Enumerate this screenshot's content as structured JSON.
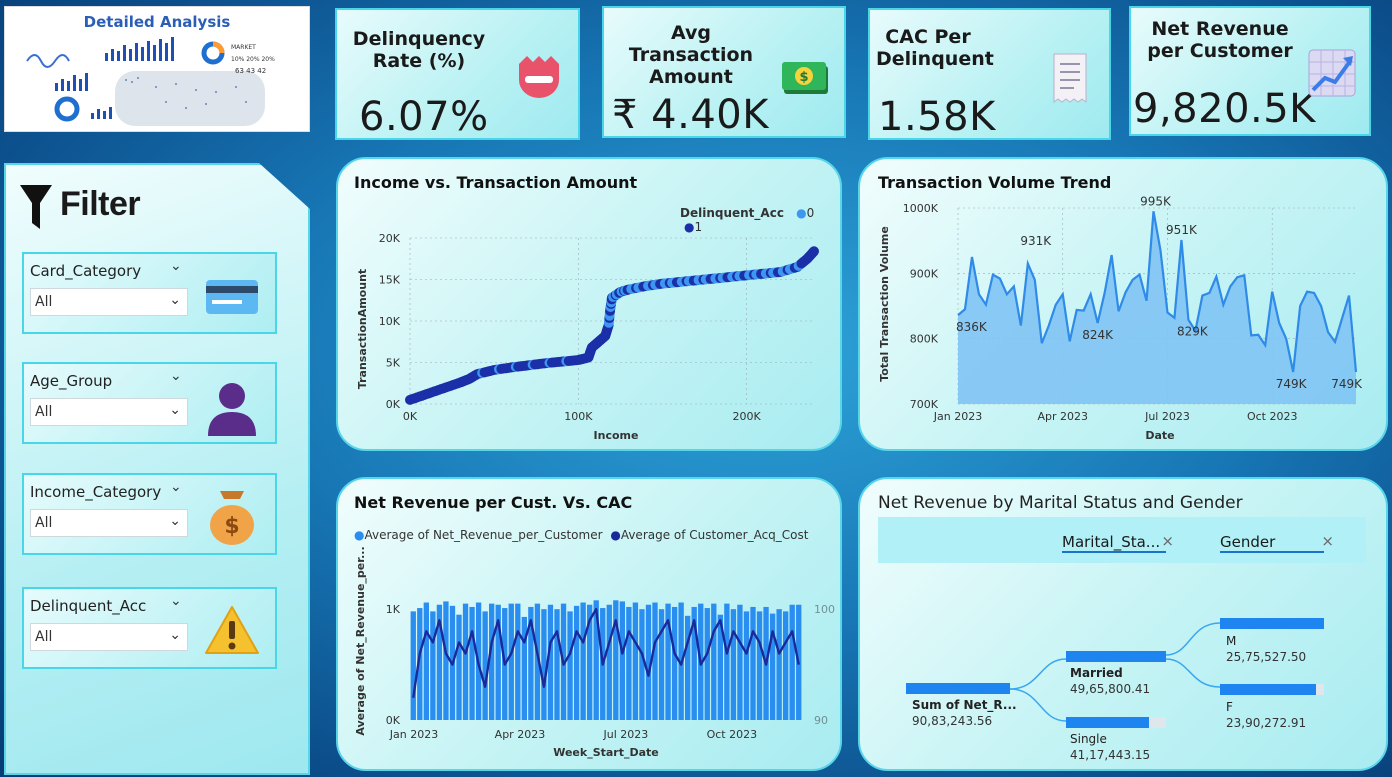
{
  "logo": {
    "title": "Detailed Analysis"
  },
  "kpis": [
    {
      "title": "Delinquency Rate (%)",
      "value": "6.07%",
      "icon": "no-entry-icon"
    },
    {
      "title": "Avg Transaction Amount",
      "value": "₹ 4.40K",
      "icon": "banknote-icon"
    },
    {
      "title": "CAC Per Delinquent",
      "value": "1.58K",
      "icon": "receipt-icon"
    },
    {
      "title": "Net Revenue per Customer",
      "value": "9,820.5K",
      "icon": "trend-chart-icon"
    }
  ],
  "filter": {
    "title": "Filter",
    "slicers": [
      {
        "label": "Card_Category",
        "value": "All",
        "icon": "credit-card-icon"
      },
      {
        "label": "Age_Group",
        "value": "All",
        "icon": "person-icon"
      },
      {
        "label": "Income_Category",
        "value": "All",
        "icon": "money-bag-icon"
      },
      {
        "label": "Delinquent_Acc",
        "value": "All",
        "icon": "warning-icon"
      }
    ]
  },
  "scatter": {
    "title": "Income vs. Transaction Amount",
    "legend_title": "Delinquent_Acc",
    "legend": [
      {
        "name": "0",
        "color": "#3d96f0"
      },
      {
        "name": "1",
        "color": "#1b2fa8"
      }
    ],
    "xlabel": "Income",
    "ylabel": "TransactionAmount",
    "xticks": [
      "0K",
      "100K",
      "200K"
    ],
    "yticks": [
      "0K",
      "5K",
      "10K",
      "15K",
      "20K"
    ]
  },
  "trend": {
    "title": "Transaction Volume Trend",
    "xlabel": "Date",
    "ylabel": "Total Transaction Volume",
    "xticks": [
      "Jan 2023",
      "Apr 2023",
      "Jul 2023",
      "Oct 2023"
    ],
    "yticks": [
      "700K",
      "800K",
      "900K",
      "1000K"
    ],
    "labels": [
      "836K",
      "931K",
      "824K",
      "995K",
      "951K",
      "829K",
      "749K",
      "749K"
    ]
  },
  "combo": {
    "title": "Net Revenue per Cust. Vs. CAC",
    "legend": [
      {
        "name": "Average of Net_Revenue_per_Customer",
        "color": "#2a8ef0"
      },
      {
        "name": "Average of Customer_Acq_Cost",
        "color": "#1a2a9a"
      }
    ],
    "xlabel": "Week_Start_Date",
    "ylabel": "Average of Net_Revenue_per...",
    "xticks": [
      "Jan 2023",
      "Apr 2023",
      "Jul 2023",
      "Oct 2023"
    ],
    "yticks_left": [
      "0K",
      "1K"
    ],
    "yticks_right": [
      "90",
      "100"
    ]
  },
  "decomp": {
    "title": "Net Revenue by Marital Status and Gender",
    "fields": [
      "Marital_Sta...",
      "Gender"
    ],
    "root": {
      "label": "Sum of Net_R...",
      "value": "90,83,243.56"
    },
    "level1": [
      {
        "label": "Married",
        "value": "49,65,800.41"
      },
      {
        "label": "Single",
        "value": "41,17,443.15"
      }
    ],
    "level2": [
      {
        "label": "M",
        "value": "25,75,527.50"
      },
      {
        "label": "F",
        "value": "23,90,272.91"
      }
    ]
  },
  "chart_data": [
    {
      "type": "scatter",
      "title": "Income vs. Transaction Amount",
      "xlabel": "Income",
      "ylabel": "TransactionAmount",
      "xlim": [
        0,
        240000
      ],
      "ylim": [
        0,
        20000
      ],
      "series": [
        {
          "name": "0",
          "color": "#3d96f0"
        },
        {
          "name": "1",
          "color": "#1b2fa8"
        }
      ],
      "curve": [
        [
          0,
          500
        ],
        [
          10000,
          1200
        ],
        [
          20000,
          1900
        ],
        [
          30000,
          2600
        ],
        [
          35000,
          3000
        ],
        [
          40000,
          3600
        ],
        [
          50000,
          4100
        ],
        [
          60000,
          4400
        ],
        [
          70000,
          4650
        ],
        [
          80000,
          4900
        ],
        [
          90000,
          5100
        ],
        [
          100000,
          5300
        ],
        [
          106000,
          5600
        ],
        [
          108000,
          6800
        ],
        [
          112000,
          7500
        ],
        [
          116000,
          8200
        ],
        [
          118000,
          9500
        ],
        [
          119000,
          11500
        ],
        [
          120000,
          12800
        ],
        [
          125000,
          13500
        ],
        [
          130000,
          13800
        ],
        [
          140000,
          14200
        ],
        [
          150000,
          14500
        ],
        [
          160000,
          14700
        ],
        [
          170000,
          14900
        ],
        [
          180000,
          15100
        ],
        [
          190000,
          15300
        ],
        [
          200000,
          15500
        ],
        [
          210000,
          15700
        ],
        [
          220000,
          15900
        ],
        [
          230000,
          16500
        ],
        [
          236000,
          17500
        ],
        [
          240000,
          18400
        ]
      ]
    },
    {
      "type": "area",
      "title": "Transaction Volume Trend",
      "xlabel": "Date",
      "ylabel": "Total Transaction Volume",
      "x_start": "Jan 2023",
      "x_end": "Dec 2023",
      "ylim": [
        700000,
        1000000
      ],
      "values": [
        836000,
        845000,
        925000,
        868000,
        852000,
        898000,
        892000,
        868000,
        880000,
        820000,
        915000,
        890000,
        793000,
        820000,
        852000,
        868000,
        796000,
        844000,
        843000,
        868000,
        824000,
        870000,
        928000,
        842000,
        871000,
        890000,
        898000,
        858000,
        995000,
        935000,
        840000,
        832000,
        951000,
        829000,
        812000,
        866000,
        870000,
        895000,
        852000,
        880000,
        894000,
        897000,
        805000,
        806000,
        790000,
        872000,
        824000,
        800000,
        749000,
        850000,
        872000,
        870000,
        850000,
        810000,
        795000,
        831000,
        866000,
        749000
      ]
    },
    {
      "type": "bar",
      "title": "Net Revenue per Cust. Vs. CAC",
      "xlabel": "Week_Start_Date",
      "ylabel": "Average of Net_Revenue_per...",
      "ylim": [
        0,
        1200
      ],
      "series": [
        {
          "name": "Average of Net_Revenue_per_Customer",
          "values": [
            980,
            1010,
            1060,
            980,
            1040,
            1070,
            1030,
            950,
            1050,
            1020,
            1060,
            980,
            1050,
            1040,
            1010,
            1050,
            1050,
            930,
            1020,
            1050,
            1000,
            1040,
            1000,
            1050,
            980,
            1030,
            1060,
            1040,
            1080,
            1010,
            1040,
            1080,
            1070,
            1020,
            1060,
            1000,
            1040,
            1060,
            1000,
            1050,
            1020,
            1060,
            940,
            1020,
            1050,
            1010,
            1050,
            950,
            1050,
            1000,
            1040,
            980,
            1020,
            980,
            1020,
            960,
            1000,
            980,
            1040,
            1040
          ]
        },
        {
          "name": "Average of Customer_Acq_Cost",
          "ylim": [
            90,
            102
          ],
          "values": [
            92,
            96,
            98,
            97,
            99,
            96,
            95,
            97,
            96,
            98,
            95,
            93,
            97,
            99,
            95,
            96,
            98,
            97,
            99,
            96,
            93,
            97,
            98,
            95,
            96,
            98,
            97,
            99,
            100,
            95,
            97,
            99,
            96,
            98,
            97,
            96,
            94,
            97,
            98,
            99,
            96,
            95,
            97,
            99,
            95,
            96,
            98,
            99,
            96,
            98,
            97,
            96,
            98,
            97,
            95,
            98,
            96,
            97,
            98,
            95
          ]
        }
      ]
    }
  ]
}
